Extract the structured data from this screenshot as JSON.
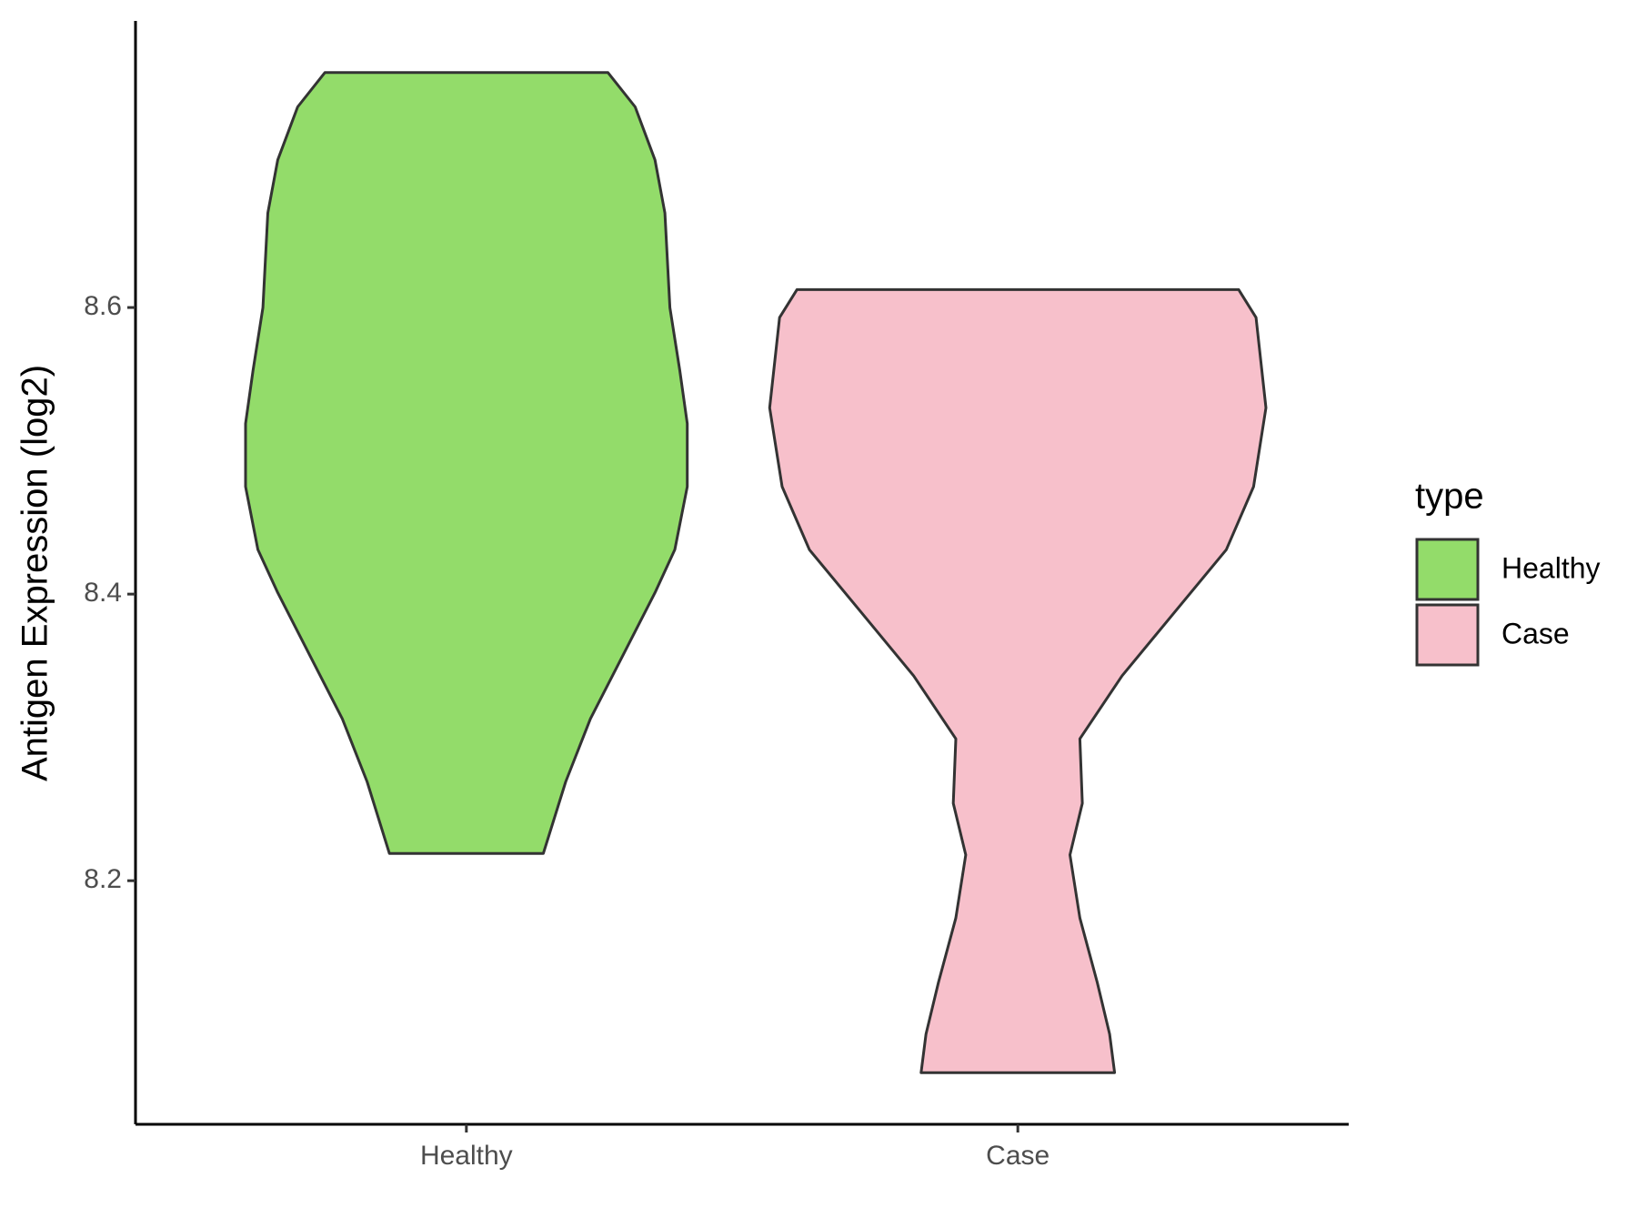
{
  "chart_data": {
    "type": "violin",
    "y_label": "Antigen Expression (log2)",
    "legend_title": "type",
    "legend_position": "right",
    "categories": [
      "Healthy",
      "Case"
    ],
    "ylim": [
      8.03,
      8.8
    ],
    "yticks": [
      8.2,
      8.4,
      8.6
    ],
    "series": [
      {
        "name": "Healthy",
        "color": "#93dc6a",
        "y": [
          8.764,
          8.74,
          8.703,
          8.666,
          8.6,
          8.556,
          8.519,
          8.475,
          8.431,
          8.401,
          8.357,
          8.313,
          8.269,
          8.219
        ],
        "density": [
          0.57,
          0.68,
          0.76,
          0.8,
          0.82,
          0.86,
          0.89,
          0.89,
          0.84,
          0.76,
          0.63,
          0.5,
          0.4,
          0.31
        ]
      },
      {
        "name": "Case",
        "color": "#f7c0cb",
        "y": [
          8.6125,
          8.593,
          8.53,
          8.475,
          8.431,
          8.387,
          8.343,
          8.299,
          8.254,
          8.218,
          8.174,
          8.129,
          8.093,
          8.066
        ],
        "density": [
          0.89,
          0.96,
          1.0,
          0.95,
          0.84,
          0.63,
          0.42,
          0.25,
          0.26,
          0.21,
          0.25,
          0.32,
          0.37,
          0.39
        ]
      }
    ]
  }
}
